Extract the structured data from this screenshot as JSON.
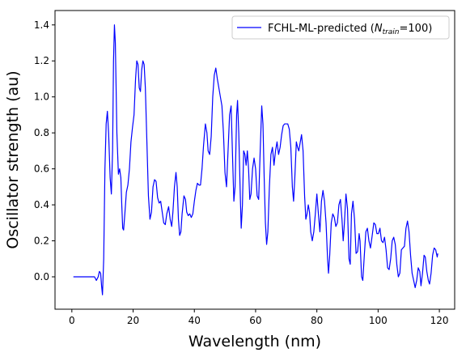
{
  "chart_data": {
    "type": "line",
    "xlabel": "Wavelength (nm)",
    "ylabel": "Oscillator strength (au)",
    "xlim": [
      -5.5,
      125
    ],
    "ylim": [
      -0.18,
      1.48
    ],
    "xticks": [
      0,
      20,
      40,
      60,
      80,
      100,
      120
    ],
    "yticks": [
      0.0,
      0.2,
      0.4,
      0.6,
      0.8,
      1.0,
      1.2,
      1.4
    ],
    "xtick_labels": [
      "0",
      "20",
      "40",
      "60",
      "80",
      "100",
      "120"
    ],
    "ytick_labels": [
      "0.0",
      "0.2",
      "0.4",
      "0.6",
      "0.8",
      "1.0",
      "1.2",
      "1.4"
    ],
    "grid": false,
    "legend_position": "top-right",
    "series": [
      {
        "name": "FCHL-ML-predicted (N_train=100)",
        "legend_main": "FCHL-ML-predicted (",
        "legend_N": "N",
        "legend_sub": "train",
        "legend_tail": "=100)",
        "color": "#0000ff",
        "points": [
          [
            0.5,
            0.0
          ],
          [
            3,
            0.0
          ],
          [
            6,
            0.0
          ],
          [
            7.4,
            0.0
          ],
          [
            8,
            -0.02
          ],
          [
            8.6,
            0.0
          ],
          [
            9,
            0.03
          ],
          [
            9.4,
            0.02
          ],
          [
            9.7,
            -0.05
          ],
          [
            10,
            -0.1
          ],
          [
            10.4,
            0.1
          ],
          [
            10.8,
            0.6
          ],
          [
            11.2,
            0.85
          ],
          [
            11.6,
            0.92
          ],
          [
            12,
            0.8
          ],
          [
            12.5,
            0.55
          ],
          [
            12.9,
            0.46
          ],
          [
            13.3,
            0.7
          ],
          [
            13.6,
            1.2
          ],
          [
            13.9,
            1.4
          ],
          [
            14.2,
            1.3
          ],
          [
            14.7,
            0.8
          ],
          [
            15.2,
            0.57
          ],
          [
            15.6,
            0.6
          ],
          [
            16,
            0.55
          ],
          [
            16.3,
            0.4
          ],
          [
            16.6,
            0.27
          ],
          [
            16.9,
            0.26
          ],
          [
            17.3,
            0.35
          ],
          [
            17.8,
            0.47
          ],
          [
            18.3,
            0.51
          ],
          [
            18.8,
            0.6
          ],
          [
            19.3,
            0.75
          ],
          [
            19.8,
            0.83
          ],
          [
            20.3,
            0.9
          ],
          [
            20.8,
            1.1
          ],
          [
            21.2,
            1.2
          ],
          [
            21.6,
            1.18
          ],
          [
            22,
            1.05
          ],
          [
            22.4,
            1.03
          ],
          [
            22.8,
            1.15
          ],
          [
            23.2,
            1.2
          ],
          [
            23.6,
            1.18
          ],
          [
            24,
            1.05
          ],
          [
            24.5,
            0.75
          ],
          [
            25,
            0.45
          ],
          [
            25.5,
            0.32
          ],
          [
            26,
            0.36
          ],
          [
            26.5,
            0.5
          ],
          [
            27,
            0.54
          ],
          [
            27.5,
            0.53
          ],
          [
            28,
            0.44
          ],
          [
            28.5,
            0.41
          ],
          [
            29,
            0.42
          ],
          [
            29.5,
            0.36
          ],
          [
            30,
            0.3
          ],
          [
            30.5,
            0.29
          ],
          [
            31,
            0.35
          ],
          [
            31.6,
            0.39
          ],
          [
            32.1,
            0.32
          ],
          [
            32.6,
            0.28
          ],
          [
            33,
            0.36
          ],
          [
            33.5,
            0.5
          ],
          [
            34,
            0.58
          ],
          [
            34.4,
            0.5
          ],
          [
            34.8,
            0.32
          ],
          [
            35.2,
            0.23
          ],
          [
            35.6,
            0.25
          ],
          [
            36,
            0.35
          ],
          [
            36.6,
            0.45
          ],
          [
            37.1,
            0.43
          ],
          [
            37.5,
            0.36
          ],
          [
            38,
            0.34
          ],
          [
            38.5,
            0.35
          ],
          [
            39,
            0.33
          ],
          [
            39.5,
            0.35
          ],
          [
            40,
            0.42
          ],
          [
            40.5,
            0.48
          ],
          [
            41,
            0.52
          ],
          [
            41.5,
            0.51
          ],
          [
            42,
            0.51
          ],
          [
            42.5,
            0.6
          ],
          [
            43,
            0.73
          ],
          [
            43.6,
            0.85
          ],
          [
            44.1,
            0.8
          ],
          [
            44.5,
            0.7
          ],
          [
            45,
            0.68
          ],
          [
            45.5,
            0.78
          ],
          [
            46,
            1.0
          ],
          [
            46.5,
            1.12
          ],
          [
            47,
            1.16
          ],
          [
            47.5,
            1.1
          ],
          [
            48,
            1.05
          ],
          [
            48.5,
            1.0
          ],
          [
            49,
            0.95
          ],
          [
            49.5,
            0.8
          ],
          [
            50,
            0.58
          ],
          [
            50.5,
            0.5
          ],
          [
            51,
            0.7
          ],
          [
            51.5,
            0.9
          ],
          [
            52,
            0.95
          ],
          [
            52.5,
            0.65
          ],
          [
            52.9,
            0.42
          ],
          [
            53.3,
            0.5
          ],
          [
            53.8,
            0.9
          ],
          [
            54.1,
            0.98
          ],
          [
            54.5,
            0.8
          ],
          [
            55,
            0.45
          ],
          [
            55.3,
            0.27
          ],
          [
            55.7,
            0.4
          ],
          [
            56.1,
            0.7
          ],
          [
            56.5,
            0.68
          ],
          [
            56.9,
            0.62
          ],
          [
            57.3,
            0.7
          ],
          [
            57.7,
            0.6
          ],
          [
            58.1,
            0.43
          ],
          [
            58.5,
            0.46
          ],
          [
            59,
            0.6
          ],
          [
            59.5,
            0.66
          ],
          [
            60,
            0.6
          ],
          [
            60.5,
            0.45
          ],
          [
            61,
            0.43
          ],
          [
            61.5,
            0.7
          ],
          [
            62,
            0.95
          ],
          [
            62.4,
            0.85
          ],
          [
            62.8,
            0.55
          ],
          [
            63.2,
            0.3
          ],
          [
            63.6,
            0.18
          ],
          [
            64,
            0.25
          ],
          [
            64.5,
            0.5
          ],
          [
            65,
            0.68
          ],
          [
            65.5,
            0.72
          ],
          [
            66,
            0.62
          ],
          [
            66.5,
            0.7
          ],
          [
            67,
            0.75
          ],
          [
            67.5,
            0.68
          ],
          [
            68,
            0.72
          ],
          [
            68.5,
            0.79
          ],
          [
            69,
            0.84
          ],
          [
            69.5,
            0.85
          ],
          [
            70.5,
            0.85
          ],
          [
            71,
            0.82
          ],
          [
            71.5,
            0.72
          ],
          [
            72,
            0.5
          ],
          [
            72.4,
            0.42
          ],
          [
            72.8,
            0.55
          ],
          [
            73.3,
            0.75
          ],
          [
            73.7,
            0.72
          ],
          [
            74.1,
            0.7
          ],
          [
            74.6,
            0.75
          ],
          [
            75,
            0.79
          ],
          [
            75.5,
            0.7
          ],
          [
            76,
            0.45
          ],
          [
            76.4,
            0.32
          ],
          [
            76.8,
            0.35
          ],
          [
            77.2,
            0.4
          ],
          [
            77.6,
            0.36
          ],
          [
            78,
            0.25
          ],
          [
            78.5,
            0.2
          ],
          [
            79,
            0.25
          ],
          [
            79.5,
            0.35
          ],
          [
            80,
            0.46
          ],
          [
            80.5,
            0.35
          ],
          [
            81,
            0.25
          ],
          [
            81.5,
            0.42
          ],
          [
            82,
            0.48
          ],
          [
            82.5,
            0.42
          ],
          [
            83,
            0.3
          ],
          [
            83.5,
            0.1
          ],
          [
            83.8,
            0.02
          ],
          [
            84.2,
            0.12
          ],
          [
            84.7,
            0.3
          ],
          [
            85.2,
            0.35
          ],
          [
            85.7,
            0.33
          ],
          [
            86.2,
            0.28
          ],
          [
            86.7,
            0.3
          ],
          [
            87.2,
            0.4
          ],
          [
            87.7,
            0.43
          ],
          [
            88.2,
            0.32
          ],
          [
            88.6,
            0.2
          ],
          [
            89,
            0.3
          ],
          [
            89.5,
            0.46
          ],
          [
            90,
            0.38
          ],
          [
            90.5,
            0.1
          ],
          [
            90.9,
            0.07
          ],
          [
            91.3,
            0.35
          ],
          [
            91.8,
            0.42
          ],
          [
            92.3,
            0.32
          ],
          [
            92.8,
            0.13
          ],
          [
            93.3,
            0.14
          ],
          [
            93.8,
            0.24
          ],
          [
            94.1,
            0.2
          ],
          [
            94.6,
            0.0
          ],
          [
            95,
            -0.02
          ],
          [
            95.5,
            0.12
          ],
          [
            96,
            0.25
          ],
          [
            96.5,
            0.27
          ],
          [
            97,
            0.2
          ],
          [
            97.5,
            0.16
          ],
          [
            98,
            0.22
          ],
          [
            98.6,
            0.3
          ],
          [
            99.1,
            0.29
          ],
          [
            99.6,
            0.24
          ],
          [
            100.1,
            0.24
          ],
          [
            100.6,
            0.27
          ],
          [
            101.1,
            0.2
          ],
          [
            101.6,
            0.19
          ],
          [
            102.1,
            0.22
          ],
          [
            102.6,
            0.15
          ],
          [
            103.1,
            0.05
          ],
          [
            103.6,
            0.04
          ],
          [
            104.1,
            0.1
          ],
          [
            104.6,
            0.2
          ],
          [
            105.1,
            0.22
          ],
          [
            105.6,
            0.18
          ],
          [
            106.1,
            0.07
          ],
          [
            106.6,
            0.0
          ],
          [
            107.1,
            0.02
          ],
          [
            107.6,
            0.15
          ],
          [
            108.1,
            0.16
          ],
          [
            108.6,
            0.17
          ],
          [
            109.1,
            0.27
          ],
          [
            109.6,
            0.31
          ],
          [
            110.1,
            0.25
          ],
          [
            110.6,
            0.12
          ],
          [
            111.1,
            0.02
          ],
          [
            111.6,
            -0.02
          ],
          [
            112.1,
            -0.06
          ],
          [
            112.6,
            -0.02
          ],
          [
            113.1,
            0.05
          ],
          [
            113.6,
            0.03
          ],
          [
            114,
            -0.05
          ],
          [
            114.5,
            0.02
          ],
          [
            115,
            0.12
          ],
          [
            115.4,
            0.11
          ],
          [
            115.9,
            0.03
          ],
          [
            116.4,
            -0.02
          ],
          [
            116.8,
            -0.04
          ],
          [
            117.3,
            0.02
          ],
          [
            117.8,
            0.12
          ],
          [
            118.3,
            0.16
          ],
          [
            118.8,
            0.15
          ],
          [
            119.3,
            0.11
          ],
          [
            119.5,
            0.13
          ]
        ]
      }
    ]
  }
}
